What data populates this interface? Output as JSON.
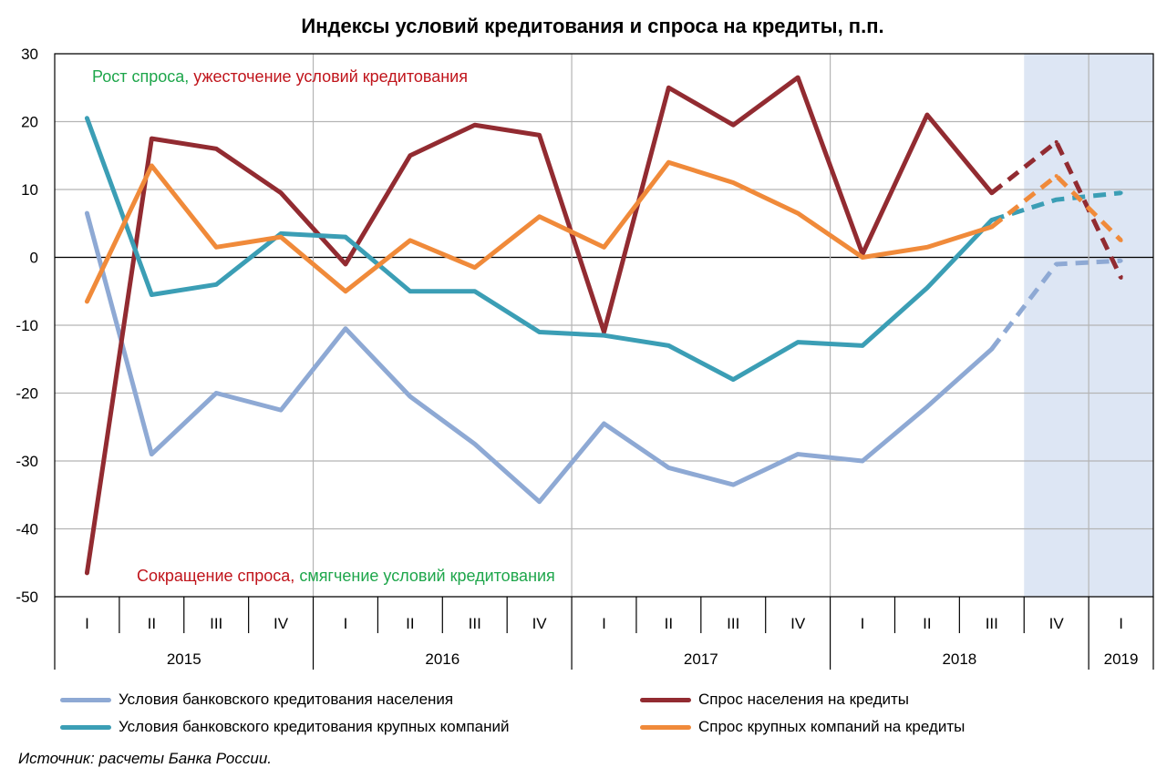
{
  "chart_data": {
    "type": "line",
    "title": "Индексы условий кредитования и спроса на кредиты, п.п.",
    "ylim": [
      -50,
      30
    ],
    "yticks": [
      30,
      20,
      10,
      0,
      -10,
      -20,
      -30,
      -40,
      -50
    ],
    "grid": true,
    "quarters": [
      "I",
      "II",
      "III",
      "IV",
      "I",
      "II",
      "III",
      "IV",
      "I",
      "II",
      "III",
      "IV",
      "I",
      "II",
      "III",
      "IV",
      "I"
    ],
    "years": [
      {
        "label": "2015",
        "from": 0,
        "to": 3
      },
      {
        "label": "2016",
        "from": 4,
        "to": 7
      },
      {
        "label": "2017",
        "from": 8,
        "to": 11
      },
      {
        "label": "2018",
        "from": 12,
        "to": 15
      },
      {
        "label": "2019",
        "from": 16,
        "to": 16
      }
    ],
    "forecast_from_index": 15,
    "annotations": {
      "top": [
        {
          "text": "Рост спроса, ",
          "color": "#1ea64b"
        },
        {
          "text": "ужесточение условий кредитования",
          "color": "#c0141b"
        }
      ],
      "bottom": [
        {
          "text": "Сокращение спроса, ",
          "color": "#c0141b"
        },
        {
          "text": "смягчение условий кредитования",
          "color": "#1ea64b"
        }
      ]
    },
    "series": [
      {
        "name": "Условия банковского кредитования населения",
        "color": "#8ea9d4",
        "values": [
          6.5,
          -29,
          -20,
          -22.5,
          -10.5,
          -20.5,
          -27.5,
          -36,
          -24.5,
          -31,
          -33.5,
          -29,
          -30,
          -22,
          -13.5,
          -1,
          -0.5
        ],
        "forecast_start": 14
      },
      {
        "name": "Спрос населения на кредиты",
        "color": "#922b31",
        "values": [
          -46.5,
          17.5,
          16,
          9.5,
          -1,
          15,
          19.5,
          18,
          -11,
          25,
          19.5,
          26.5,
          0.5,
          21,
          9.5,
          17,
          -3
        ],
        "forecast_start": 14
      },
      {
        "name": "Условия банковского кредитования крупных компаний",
        "color": "#3b9eb5",
        "values": [
          20.5,
          -5.5,
          -4,
          3.5,
          3,
          -5,
          -5,
          -11,
          -11.5,
          -13,
          -18,
          -12.5,
          -13,
          -4.5,
          5.5,
          8.5,
          9.5
        ],
        "forecast_start": 14
      },
      {
        "name": "Спрос крупных компаний на кредиты",
        "color": "#f08a3a",
        "values": [
          -6.5,
          13.5,
          1.5,
          3,
          -5,
          2.5,
          -1.5,
          6,
          1.5,
          14,
          11,
          6.5,
          0,
          1.5,
          4.5,
          12,
          2.5
        ],
        "forecast_start": 14
      }
    ]
  },
  "legend": {
    "item1": "Условия банковского кредитования населения",
    "item2": "Спрос населения на кредиты",
    "item3": "Условия банковского кредитования крупных компаний",
    "item4": "Спрос крупных компаний на кредиты"
  },
  "source": "Источник: расчеты Банка России."
}
